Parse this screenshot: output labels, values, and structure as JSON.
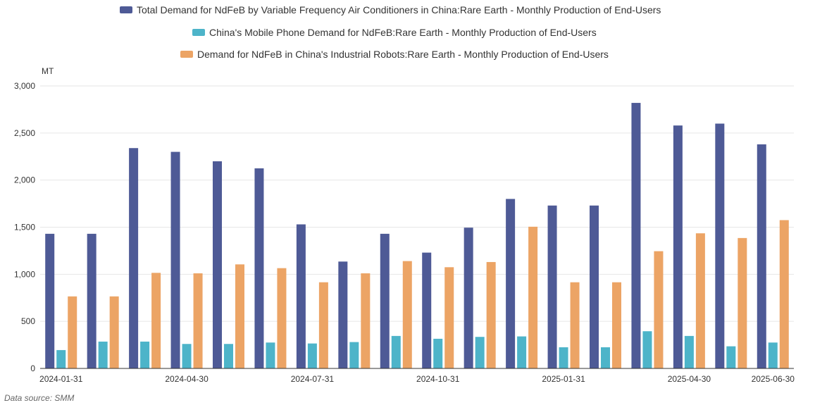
{
  "chart_data": {
    "type": "bar",
    "unit": "MT",
    "ylim": [
      0,
      3000
    ],
    "yticks": [
      0,
      500,
      1000,
      1500,
      2000,
      2500,
      3000
    ],
    "ytick_labels": [
      "0",
      "500",
      "1,000",
      "1,500",
      "2,000",
      "2,500",
      "3,000"
    ],
    "categories": [
      "2024-01-31",
      "2024-02-29",
      "2024-03-31",
      "2024-04-30",
      "2024-05-31",
      "2024-06-30",
      "2024-07-31",
      "2024-08-31",
      "2024-09-30",
      "2024-10-31",
      "2024-11-30",
      "2024-12-31",
      "2025-01-31",
      "2025-02-28",
      "2025-03-31",
      "2025-04-30",
      "2025-05-31",
      "2025-06-30"
    ],
    "shown_xlabels": [
      "2024-01-31",
      "2024-04-30",
      "2024-07-31",
      "2024-10-31",
      "2025-01-31",
      "2025-04-30",
      "2025-06-30"
    ],
    "series": [
      {
        "name": "Total Demand for NdFeB by Variable Frequency Air Conditioners in China:Rare Earth - Monthly Production of End-Users",
        "color": "#4e5a96",
        "values": [
          1430,
          1430,
          2340,
          2300,
          2200,
          2125,
          1530,
          1135,
          1430,
          1230,
          1495,
          1800,
          1730,
          1730,
          2820,
          2580,
          2600,
          2380
        ]
      },
      {
        "name": "China's Mobile Phone Demand for NdFeB:Rare Earth - Monthly Production of End-Users",
        "color": "#4db4c9",
        "values": [
          195,
          285,
          285,
          260,
          260,
          275,
          265,
          280,
          345,
          315,
          335,
          340,
          225,
          225,
          395,
          345,
          235,
          275
        ]
      },
      {
        "name": "Demand for NdFeB in China's Industrial Robots:Rare Earth - Monthly Production of End-Users",
        "color": "#eca465",
        "values": [
          765,
          765,
          1015,
          1010,
          1105,
          1065,
          915,
          1010,
          1140,
          1075,
          1130,
          1505,
          915,
          915,
          1245,
          1435,
          1385,
          1575
        ]
      }
    ],
    "grid": true,
    "legend_position": "top-center"
  },
  "source_text": "Data source:  SMM"
}
